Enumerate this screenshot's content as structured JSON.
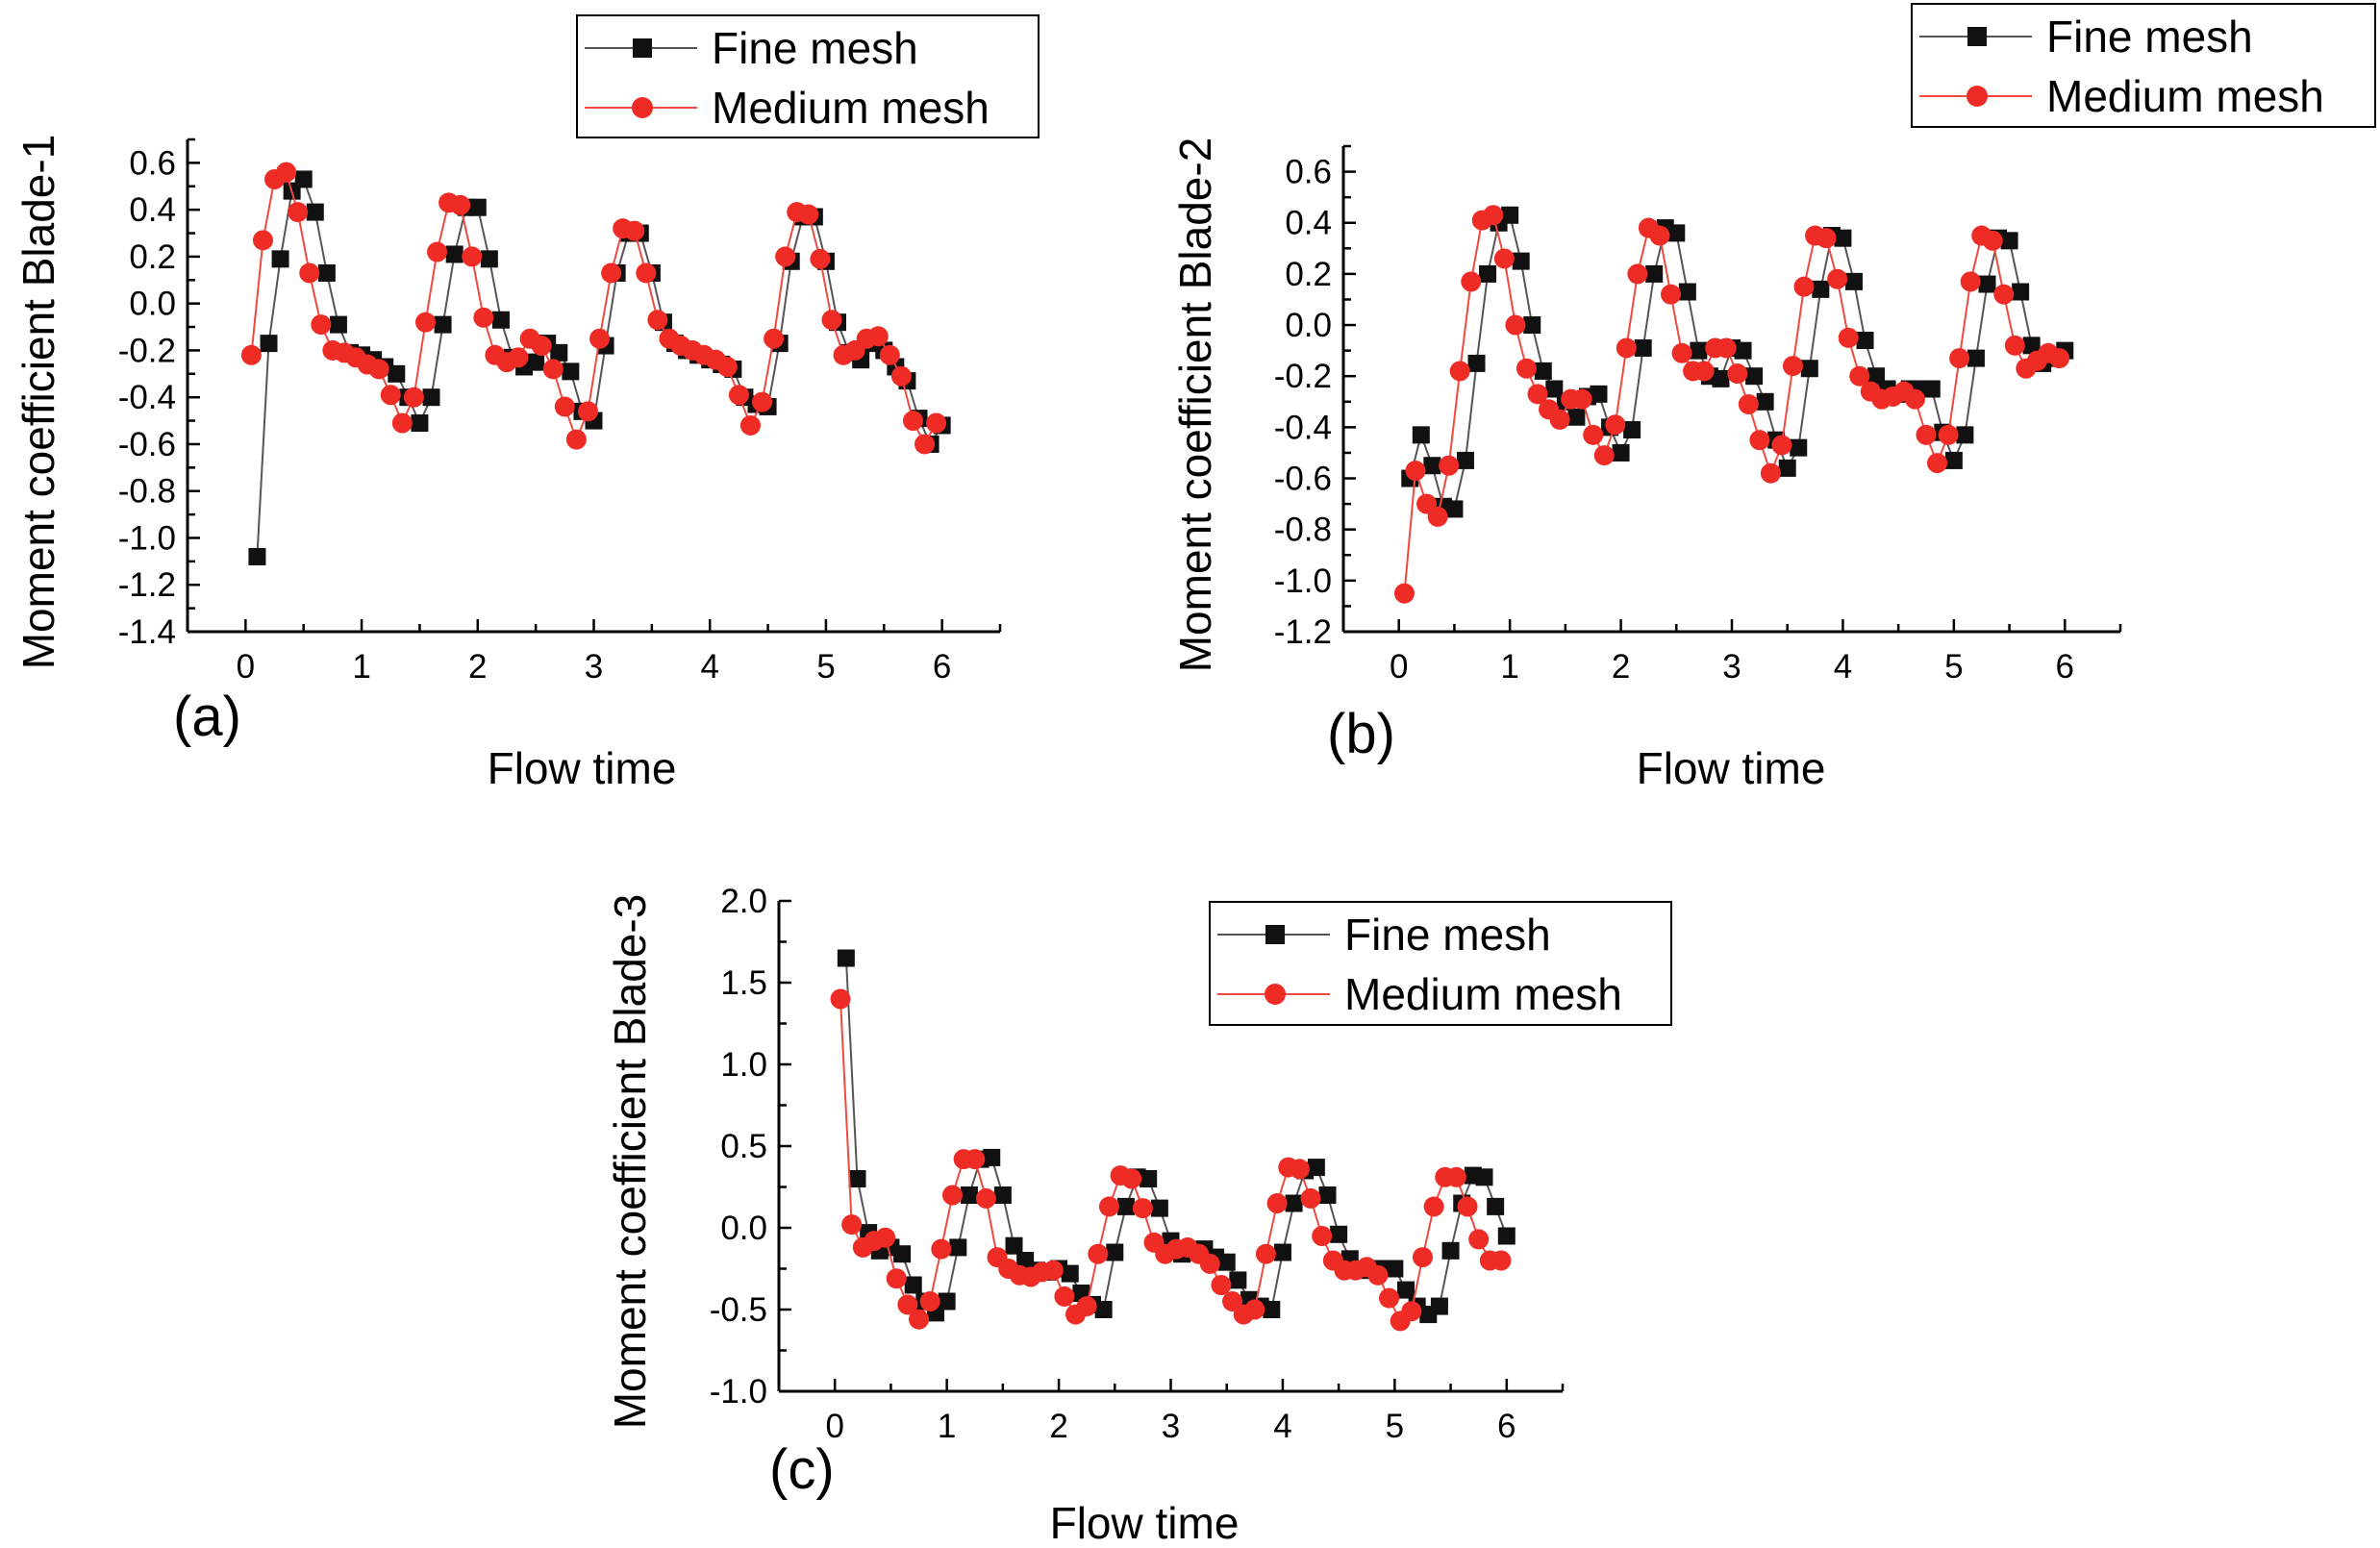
{
  "colors": {
    "fine": "#111111",
    "medium": "#ee2b24",
    "fine_line": "#555555",
    "medium_line": "#ee4a40"
  },
  "chart_data": [
    {
      "type": "line",
      "panel_label": "(a)",
      "xlabel": "Flow time",
      "ylabel": "Moment coefficient Blade-1",
      "xlim": [
        -0.5,
        6.5
      ],
      "ylim": [
        -1.4,
        0.7
      ],
      "xticks": [
        "0",
        "1",
        "2",
        "3",
        "4",
        "5",
        "6"
      ],
      "yticks": [
        "-1.4",
        "-1.2",
        "-1.0",
        "-0.8",
        "-0.6",
        "-0.4",
        "-0.2",
        "0.0",
        "0.2",
        "0.4",
        "0.6"
      ],
      "legend": [
        "Fine mesh",
        "Medium mesh"
      ],
      "series": [
        {
          "name": "Fine mesh",
          "marker": "square",
          "x": [
            0.1,
            0.2,
            0.3,
            0.4,
            0.5,
            0.6,
            0.7,
            0.8,
            0.9,
            1.0,
            1.1,
            1.2,
            1.3,
            1.4,
            1.5,
            1.6,
            1.7,
            1.8,
            1.9,
            2.0,
            2.1,
            2.2,
            2.3,
            2.4,
            2.5,
            2.6,
            2.7,
            2.8,
            2.9,
            3.0,
            3.1,
            3.2,
            3.3,
            3.4,
            3.5,
            3.6,
            3.7,
            3.8,
            3.9,
            4.0,
            4.1,
            4.2,
            4.3,
            4.4,
            4.5,
            4.6,
            4.7,
            4.8,
            4.9,
            5.0,
            5.1,
            5.2,
            5.3,
            5.4,
            5.5,
            5.6,
            5.7,
            5.8,
            5.9,
            6.0
          ],
          "y": [
            -1.08,
            -0.17,
            0.19,
            0.48,
            0.53,
            0.39,
            0.13,
            -0.09,
            -0.21,
            -0.22,
            -0.24,
            -0.27,
            -0.3,
            -0.4,
            -0.51,
            -0.4,
            -0.09,
            0.21,
            0.41,
            0.41,
            0.19,
            -0.07,
            -0.23,
            -0.27,
            -0.25,
            -0.17,
            -0.21,
            -0.29,
            -0.46,
            -0.5,
            -0.18,
            0.13,
            0.3,
            0.3,
            0.13,
            -0.08,
            -0.17,
            -0.2,
            -0.22,
            -0.24,
            -0.26,
            -0.28,
            -0.4,
            -0.43,
            -0.44,
            -0.17,
            0.18,
            0.37,
            0.37,
            0.18,
            -0.08,
            -0.21,
            -0.24,
            -0.17,
            -0.2,
            -0.27,
            -0.33,
            -0.49,
            -0.6,
            -0.52
          ]
        },
        {
          "name": "Medium mesh",
          "marker": "circle",
          "x": [
            0.05,
            0.15,
            0.25,
            0.35,
            0.45,
            0.55,
            0.65,
            0.75,
            0.85,
            0.95,
            1.05,
            1.15,
            1.25,
            1.35,
            1.45,
            1.55,
            1.65,
            1.75,
            1.85,
            1.95,
            2.05,
            2.15,
            2.25,
            2.35,
            2.45,
            2.55,
            2.65,
            2.75,
            2.85,
            2.95,
            3.05,
            3.15,
            3.25,
            3.35,
            3.45,
            3.55,
            3.65,
            3.75,
            3.85,
            3.95,
            4.05,
            4.15,
            4.25,
            4.35,
            4.45,
            4.55,
            4.65,
            4.75,
            4.85,
            4.95,
            5.05,
            5.15,
            5.25,
            5.35,
            5.45,
            5.55,
            5.65,
            5.75,
            5.85,
            5.95
          ],
          "y": [
            -0.22,
            0.27,
            0.53,
            0.56,
            0.39,
            0.13,
            -0.09,
            -0.2,
            -0.21,
            -0.23,
            -0.26,
            -0.28,
            -0.39,
            -0.51,
            -0.4,
            -0.08,
            0.22,
            0.43,
            0.42,
            0.2,
            -0.06,
            -0.22,
            -0.25,
            -0.23,
            -0.15,
            -0.18,
            -0.28,
            -0.44,
            -0.58,
            -0.46,
            -0.15,
            0.13,
            0.32,
            0.31,
            0.13,
            -0.07,
            -0.15,
            -0.18,
            -0.2,
            -0.22,
            -0.24,
            -0.27,
            -0.39,
            -0.52,
            -0.42,
            -0.15,
            0.2,
            0.39,
            0.38,
            0.19,
            -0.07,
            -0.22,
            -0.2,
            -0.15,
            -0.14,
            -0.22,
            -0.31,
            -0.5,
            -0.6,
            -0.51
          ]
        }
      ]
    },
    {
      "type": "line",
      "panel_label": "(b)",
      "xlabel": "Flow time",
      "ylabel": "Moment coefficient Blade-2",
      "xlim": [
        -0.5,
        6.5
      ],
      "ylim": [
        -1.2,
        0.7
      ],
      "xticks": [
        "0",
        "1",
        "2",
        "3",
        "4",
        "5",
        "6"
      ],
      "yticks": [
        "-1.2",
        "-1.0",
        "-0.8",
        "-0.6",
        "-0.4",
        "-0.2",
        "0.0",
        "0.2",
        "0.4",
        "0.6"
      ],
      "legend": [
        "Fine mesh",
        "Medium mesh"
      ],
      "series": [
        {
          "name": "Fine mesh",
          "marker": "square",
          "x": [
            0.1,
            0.2,
            0.3,
            0.4,
            0.5,
            0.6,
            0.7,
            0.8,
            0.9,
            1.0,
            1.1,
            1.2,
            1.3,
            1.4,
            1.5,
            1.6,
            1.7,
            1.8,
            1.9,
            2.0,
            2.1,
            2.2,
            2.3,
            2.4,
            2.5,
            2.6,
            2.7,
            2.8,
            2.9,
            3.0,
            3.1,
            3.2,
            3.3,
            3.4,
            3.5,
            3.6,
            3.7,
            3.8,
            3.9,
            4.0,
            4.1,
            4.2,
            4.3,
            4.4,
            4.5,
            4.6,
            4.7,
            4.8,
            4.9,
            5.0,
            5.1,
            5.2,
            5.3,
            5.4,
            5.5,
            5.6,
            5.7,
            5.8,
            5.9,
            6.0
          ],
          "y": [
            -0.6,
            -0.43,
            -0.55,
            -0.71,
            -0.72,
            -0.53,
            -0.15,
            0.2,
            0.4,
            0.43,
            0.25,
            0.0,
            -0.18,
            -0.25,
            -0.3,
            -0.36,
            -0.28,
            -0.27,
            -0.4,
            -0.5,
            -0.41,
            -0.09,
            0.2,
            0.38,
            0.36,
            0.13,
            -0.1,
            -0.2,
            -0.21,
            -0.09,
            -0.1,
            -0.2,
            -0.3,
            -0.45,
            -0.56,
            -0.48,
            -0.17,
            0.14,
            0.35,
            0.34,
            0.17,
            -0.06,
            -0.2,
            -0.25,
            -0.27,
            -0.25,
            -0.25,
            -0.25,
            -0.42,
            -0.53,
            -0.43,
            -0.13,
            0.16,
            0.34,
            0.33,
            0.13,
            -0.08,
            -0.15,
            -0.13,
            -0.1
          ]
        },
        {
          "name": "Medium mesh",
          "marker": "circle",
          "x": [
            0.05,
            0.15,
            0.25,
            0.35,
            0.45,
            0.55,
            0.65,
            0.75,
            0.85,
            0.95,
            1.05,
            1.15,
            1.25,
            1.35,
            1.45,
            1.55,
            1.65,
            1.75,
            1.85,
            1.95,
            2.05,
            2.15,
            2.25,
            2.35,
            2.45,
            2.55,
            2.65,
            2.75,
            2.85,
            2.95,
            3.05,
            3.15,
            3.25,
            3.35,
            3.45,
            3.55,
            3.65,
            3.75,
            3.85,
            3.95,
            4.05,
            4.15,
            4.25,
            4.35,
            4.45,
            4.55,
            4.65,
            4.75,
            4.85,
            4.95,
            5.05,
            5.15,
            5.25,
            5.35,
            5.45,
            5.55,
            5.65,
            5.75,
            5.85,
            5.95
          ],
          "y": [
            -1.05,
            -0.57,
            -0.7,
            -0.75,
            -0.55,
            -0.18,
            0.17,
            0.41,
            0.43,
            0.26,
            0.0,
            -0.17,
            -0.27,
            -0.33,
            -0.37,
            -0.29,
            -0.29,
            -0.43,
            -0.51,
            -0.39,
            -0.09,
            0.2,
            0.38,
            0.35,
            0.12,
            -0.11,
            -0.18,
            -0.18,
            -0.09,
            -0.09,
            -0.19,
            -0.31,
            -0.45,
            -0.58,
            -0.47,
            -0.16,
            0.15,
            0.35,
            0.34,
            0.18,
            -0.05,
            -0.2,
            -0.26,
            -0.29,
            -0.28,
            -0.26,
            -0.29,
            -0.43,
            -0.54,
            -0.43,
            -0.13,
            0.17,
            0.35,
            0.33,
            0.12,
            -0.08,
            -0.17,
            -0.14,
            -0.11,
            -0.13
          ]
        }
      ]
    },
    {
      "type": "line",
      "panel_label": "(c)",
      "xlabel": "Flow time",
      "ylabel": "Moment coefficient Blade-3",
      "xlim": [
        -0.5,
        6.5
      ],
      "ylim": [
        -1.0,
        2.0
      ],
      "xticks": [
        "0",
        "1",
        "2",
        "3",
        "4",
        "5",
        "6"
      ],
      "yticks": [
        "-1.0",
        "-0.5",
        "0.0",
        "0.5",
        "1.0",
        "1.5",
        "2.0"
      ],
      "legend": [
        "Fine mesh",
        "Medium mesh"
      ],
      "series": [
        {
          "name": "Fine mesh",
          "marker": "square",
          "x": [
            0.1,
            0.2,
            0.3,
            0.4,
            0.5,
            0.6,
            0.7,
            0.8,
            0.9,
            1.0,
            1.1,
            1.2,
            1.3,
            1.4,
            1.5,
            1.6,
            1.7,
            1.8,
            1.9,
            2.0,
            2.1,
            2.2,
            2.3,
            2.4,
            2.5,
            2.6,
            2.7,
            2.8,
            2.9,
            3.0,
            3.1,
            3.2,
            3.3,
            3.4,
            3.5,
            3.6,
            3.7,
            3.8,
            3.9,
            4.0,
            4.1,
            4.2,
            4.3,
            4.4,
            4.5,
            4.6,
            4.7,
            4.8,
            4.9,
            5.0,
            5.1,
            5.2,
            5.3,
            5.4,
            5.5,
            5.6,
            5.7,
            5.8,
            5.9,
            6.0
          ],
          "y": [
            1.65,
            0.3,
            -0.03,
            -0.14,
            -0.12,
            -0.16,
            -0.35,
            -0.45,
            -0.52,
            -0.45,
            -0.12,
            0.2,
            0.42,
            0.43,
            0.2,
            -0.11,
            -0.2,
            -0.26,
            -0.27,
            -0.25,
            -0.28,
            -0.4,
            -0.47,
            -0.5,
            -0.15,
            0.13,
            0.31,
            0.3,
            0.12,
            -0.08,
            -0.16,
            -0.15,
            -0.13,
            -0.18,
            -0.21,
            -0.32,
            -0.44,
            -0.48,
            -0.5,
            -0.15,
            0.15,
            0.35,
            0.37,
            0.2,
            -0.04,
            -0.19,
            -0.26,
            -0.25,
            -0.25,
            -0.25,
            -0.38,
            -0.48,
            -0.53,
            -0.48,
            -0.14,
            0.15,
            0.32,
            0.31,
            0.13,
            -0.05
          ]
        },
        {
          "name": "Medium mesh",
          "marker": "circle",
          "x": [
            0.05,
            0.15,
            0.25,
            0.35,
            0.45,
            0.55,
            0.65,
            0.75,
            0.85,
            0.95,
            1.05,
            1.15,
            1.25,
            1.35,
            1.45,
            1.55,
            1.65,
            1.75,
            1.85,
            1.95,
            2.05,
            2.15,
            2.25,
            2.35,
            2.45,
            2.55,
            2.65,
            2.75,
            2.85,
            2.95,
            3.05,
            3.15,
            3.25,
            3.35,
            3.45,
            3.55,
            3.65,
            3.75,
            3.85,
            3.95,
            4.05,
            4.15,
            4.25,
            4.35,
            4.45,
            4.55,
            4.65,
            4.75,
            4.85,
            4.95,
            5.05,
            5.15,
            5.25,
            5.35,
            5.45,
            5.55,
            5.65,
            5.75,
            5.85,
            5.95
          ],
          "y": [
            1.4,
            0.02,
            -0.12,
            -0.08,
            -0.06,
            -0.31,
            -0.47,
            -0.56,
            -0.45,
            -0.13,
            0.2,
            0.42,
            0.42,
            0.18,
            -0.18,
            -0.25,
            -0.29,
            -0.3,
            -0.27,
            -0.26,
            -0.42,
            -0.53,
            -0.48,
            -0.16,
            0.13,
            0.32,
            0.3,
            0.12,
            -0.09,
            -0.16,
            -0.13,
            -0.12,
            -0.16,
            -0.22,
            -0.35,
            -0.45,
            -0.53,
            -0.5,
            -0.16,
            0.15,
            0.37,
            0.36,
            0.18,
            -0.05,
            -0.2,
            -0.26,
            -0.26,
            -0.24,
            -0.29,
            -0.43,
            -0.57,
            -0.51,
            -0.18,
            0.13,
            0.31,
            0.31,
            0.13,
            -0.07,
            -0.2,
            -0.2
          ]
        }
      ]
    }
  ]
}
